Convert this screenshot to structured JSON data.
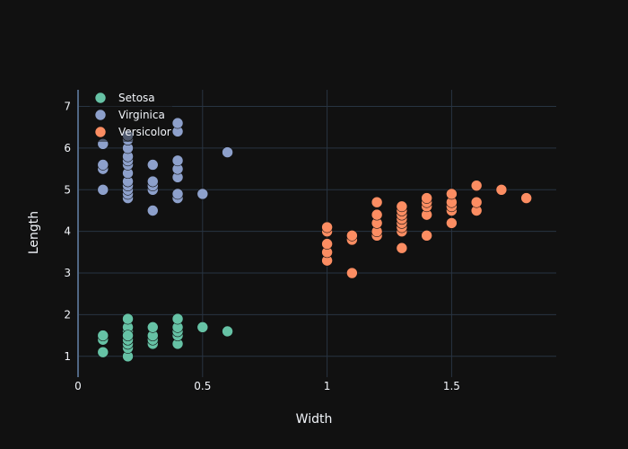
{
  "chart_data": {
    "type": "scatter",
    "title": "",
    "xlabel": "Width",
    "ylabel": "Length",
    "xlim": [
      0,
      1.92
    ],
    "ylim": [
      0.5,
      7.4
    ],
    "x_ticks": [
      0,
      0.5,
      1,
      1.5
    ],
    "x_tick_labels": [
      "0",
      "0.5",
      "1",
      "1.5"
    ],
    "y_ticks": [
      1,
      2,
      3,
      4,
      5,
      6,
      7
    ],
    "y_tick_labels": [
      "1",
      "2",
      "3",
      "4",
      "5",
      "6",
      "7"
    ],
    "grid": true,
    "legend_position": "top-left",
    "series": [
      {
        "name": "Setosa",
        "color": "#66c2a5",
        "x": [
          0.1,
          0.1,
          0.1,
          0.2,
          0.2,
          0.2,
          0.2,
          0.2,
          0.2,
          0.2,
          0.2,
          0.2,
          0.2,
          0.3,
          0.3,
          0.3,
          0.3,
          0.4,
          0.4,
          0.4,
          0.4,
          0.4,
          0.5,
          0.6
        ],
        "y": [
          1.1,
          1.4,
          1.5,
          1.0,
          1.2,
          1.3,
          1.4,
          1.5,
          1.6,
          1.7,
          1.9,
          1.4,
          1.5,
          1.3,
          1.4,
          1.5,
          1.7,
          1.3,
          1.5,
          1.6,
          1.7,
          1.9,
          1.7,
          1.6
        ]
      },
      {
        "name": "Virginica",
        "color": "#8da0cb",
        "x": [
          0.1,
          0.1,
          0.1,
          0.1,
          0.2,
          0.2,
          0.2,
          0.2,
          0.2,
          0.2,
          0.2,
          0.2,
          0.2,
          0.2,
          0.2,
          0.2,
          0.3,
          0.3,
          0.3,
          0.3,
          0.3,
          0.4,
          0.4,
          0.4,
          0.4,
          0.4,
          0.4,
          0.4,
          0.5,
          0.6
        ],
        "y": [
          5.0,
          5.5,
          5.6,
          6.1,
          4.8,
          4.9,
          5.0,
          5.1,
          5.2,
          5.4,
          5.6,
          5.7,
          5.8,
          6.0,
          6.2,
          6.3,
          4.5,
          5.0,
          5.1,
          5.2,
          5.6,
          4.8,
          4.9,
          5.3,
          5.5,
          5.7,
          6.4,
          6.6,
          4.9,
          5.9
        ]
      },
      {
        "name": "Versicolor",
        "color": "#fc8d62",
        "x": [
          1.0,
          1.0,
          1.0,
          1.0,
          1.0,
          1.1,
          1.1,
          1.1,
          1.2,
          1.2,
          1.2,
          1.2,
          1.2,
          1.3,
          1.3,
          1.3,
          1.3,
          1.3,
          1.3,
          1.3,
          1.3,
          1.4,
          1.4,
          1.4,
          1.4,
          1.4,
          1.5,
          1.5,
          1.5,
          1.5,
          1.5,
          1.6,
          1.6,
          1.6,
          1.7,
          1.8
        ],
        "y": [
          3.3,
          3.5,
          3.7,
          4.0,
          4.1,
          3.0,
          3.8,
          3.9,
          3.9,
          4.0,
          4.2,
          4.4,
          4.7,
          3.6,
          4.0,
          4.1,
          4.2,
          4.3,
          4.4,
          4.5,
          4.6,
          3.9,
          4.4,
          4.6,
          4.7,
          4.8,
          4.2,
          4.5,
          4.6,
          4.7,
          4.9,
          4.5,
          4.7,
          5.1,
          5.0,
          4.8
        ]
      }
    ]
  }
}
